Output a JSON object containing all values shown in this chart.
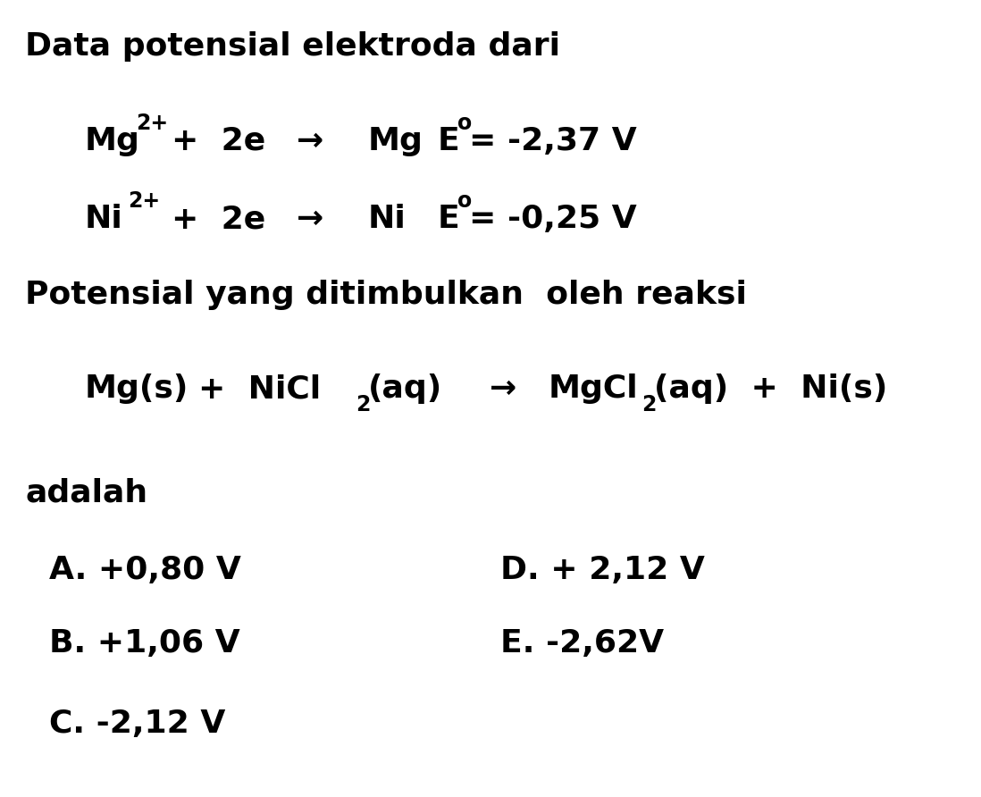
{
  "background_color": "#ffffff",
  "text_color": "#000000",
  "title_line": "Data potensial elektroda dari",
  "potensial_line": "Potensial yang ditimbulkan  oleh reaksi",
  "adalah_line": "adalah",
  "answers": {
    "A": "A. +0,80 V",
    "B": "B. +1,06 V",
    "C": "C. -2,12 V",
    "D": "D. + 2,12 V",
    "E": "E. -2,62V"
  },
  "font_size": 26,
  "sup_font_size": 17,
  "sub_font_size": 17
}
